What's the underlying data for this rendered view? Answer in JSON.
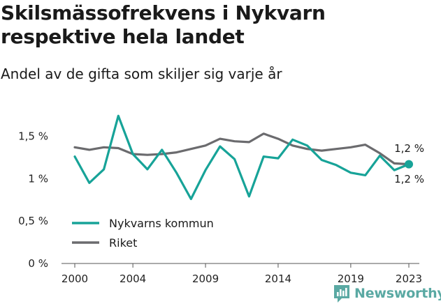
{
  "header": {
    "title": "Skilsmässofrekvens i Nykvarn respektive hela landet",
    "subtitle": "Andel av de gifta som skiljer sig varje år"
  },
  "brand": {
    "name": "Newsworthy",
    "icon": "bar-chart-logo-icon",
    "color": "#5aa9a3"
  },
  "chart_data": {
    "type": "line",
    "title": "Skilsmässofrekvens i Nykvarn respektive hela landet",
    "subtitle": "Andel av de gifta som skiljer sig varje år",
    "x": [
      2000,
      2001,
      2002,
      2003,
      2004,
      2005,
      2006,
      2007,
      2008,
      2009,
      2010,
      2011,
      2012,
      2013,
      2014,
      2015,
      2016,
      2017,
      2018,
      2019,
      2020,
      2021,
      2022,
      2023
    ],
    "x_tick_labels": [
      "2000",
      "2004",
      "2009",
      "2014",
      "2019",
      "2023"
    ],
    "y_tick_labels": [
      "0 %",
      "0,5 %",
      "1 %",
      "1,5 %"
    ],
    "y_ticks": [
      0,
      0.5,
      1,
      1.5
    ],
    "ylim": [
      0,
      1.75
    ],
    "xlim": [
      2000,
      2023
    ],
    "grid": false,
    "legend_position": "bottom-left",
    "series": [
      {
        "name": "Nykvarns kommun",
        "color": "#17a398",
        "values": [
          1.26,
          0.95,
          1.11,
          1.74,
          1.29,
          1.11,
          1.34,
          1.07,
          0.76,
          1.1,
          1.38,
          1.23,
          0.79,
          1.26,
          1.24,
          1.46,
          1.39,
          1.22,
          1.16,
          1.07,
          1.04,
          1.27,
          1.1,
          1.17
        ],
        "end_label": "1,2 %"
      },
      {
        "name": "Riket",
        "color": "#6b6b6e",
        "values": [
          1.37,
          1.34,
          1.37,
          1.36,
          1.29,
          1.28,
          1.29,
          1.31,
          1.35,
          1.39,
          1.47,
          1.44,
          1.43,
          1.53,
          1.47,
          1.39,
          1.35,
          1.33,
          1.35,
          1.37,
          1.4,
          1.3,
          1.18,
          1.17
        ],
        "end_label": "1,2 %"
      }
    ]
  }
}
